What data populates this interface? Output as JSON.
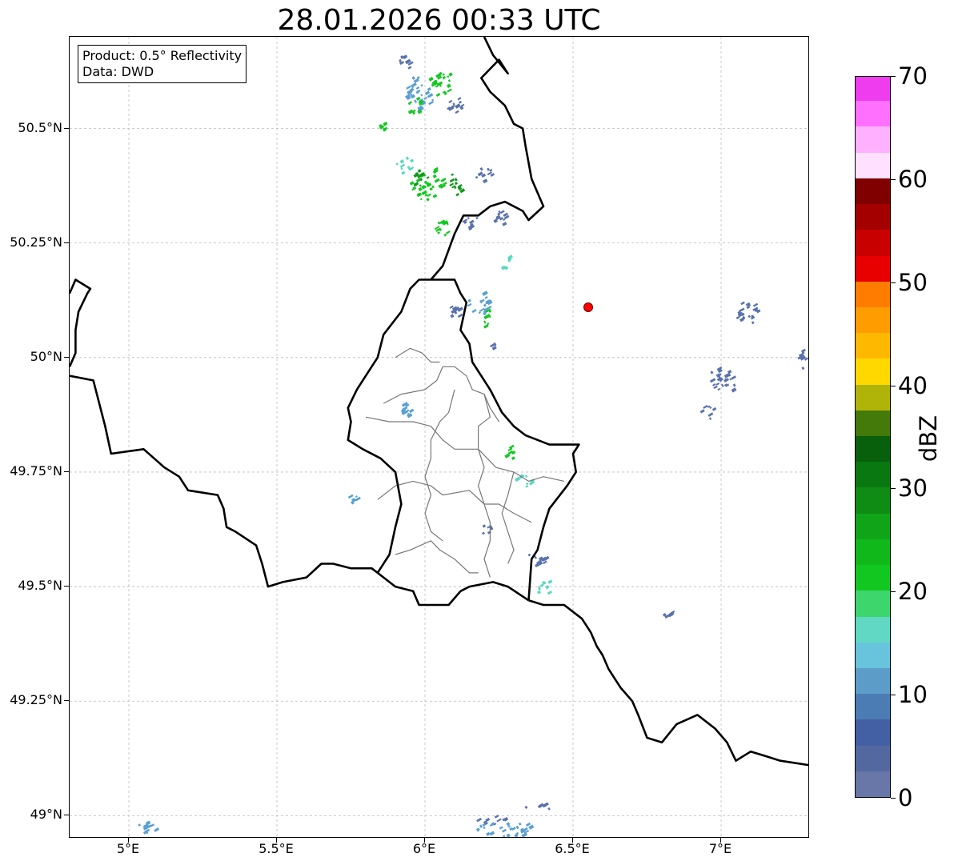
{
  "title": "28.01.2026 00:33 UTC",
  "infobox": {
    "product": "Product: 0.5° Reflectivity",
    "data": "Data: DWD"
  },
  "axes": {
    "lon_range": [
      4.8,
      7.3
    ],
    "lat_range": [
      48.95,
      50.7
    ],
    "x_ticks": [
      {
        "value": 5.0,
        "label": "5°E"
      },
      {
        "value": 5.5,
        "label": "5.5°E"
      },
      {
        "value": 6.0,
        "label": "6°E"
      },
      {
        "value": 6.5,
        "label": "6.5°E"
      },
      {
        "value": 7.0,
        "label": "7°E"
      }
    ],
    "y_ticks": [
      {
        "value": 49.0,
        "label": "49°N"
      },
      {
        "value": 49.25,
        "label": "49.25°N"
      },
      {
        "value": 49.5,
        "label": "49.5°N"
      },
      {
        "value": 49.75,
        "label": "49.75°N"
      },
      {
        "value": 50.0,
        "label": "50°N"
      },
      {
        "value": 50.25,
        "label": "50.25°N"
      },
      {
        "value": 50.5,
        "label": "50.5°N"
      }
    ]
  },
  "radar_site": {
    "lon": 6.55,
    "lat": 50.11,
    "color": "#ff0000"
  },
  "colorbar": {
    "unit": "dBZ",
    "range": [
      0,
      70
    ],
    "tick_labels": [
      {
        "value": 0,
        "label": "0"
      },
      {
        "value": 10,
        "label": "10"
      },
      {
        "value": 20,
        "label": "20"
      },
      {
        "value": 30,
        "label": "30"
      },
      {
        "value": 40,
        "label": "40"
      },
      {
        "value": 50,
        "label": "50"
      },
      {
        "value": 60,
        "label": "60"
      },
      {
        "value": 70,
        "label": "70"
      }
    ],
    "colors": [
      "#6877a8",
      "#5468a0",
      "#4460a4",
      "#4c7cb4",
      "#5c9cc8",
      "#68c4dc",
      "#60d8c4",
      "#3cd66c",
      "#12c820",
      "#10b81a",
      "#10a418",
      "#0e8c14",
      "#0a7810",
      "#08600c",
      "#447a0a",
      "#b0b408",
      "#ffd800",
      "#ffb800",
      "#ff9c00",
      "#ff7c00",
      "#e80000",
      "#c80000",
      "#a40000",
      "#800000",
      "#ffe0ff",
      "#ffb0ff",
      "#ff70ff",
      "#ee3cee"
    ]
  },
  "borders": {
    "country": [
      {
        "name": "france-belgium",
        "points": [
          [
            4.8,
            49.96
          ],
          [
            4.88,
            49.95
          ],
          [
            4.92,
            49.85
          ],
          [
            4.94,
            49.79
          ],
          [
            5.05,
            49.8
          ],
          [
            5.12,
            49.76
          ],
          [
            5.17,
            49.74
          ],
          [
            5.2,
            49.71
          ],
          [
            5.3,
            49.7
          ],
          [
            5.32,
            49.67
          ],
          [
            5.33,
            49.63
          ],
          [
            5.36,
            49.62
          ],
          [
            5.43,
            49.59
          ],
          [
            5.45,
            49.55
          ],
          [
            5.47,
            49.5
          ],
          [
            5.52,
            49.51
          ],
          [
            5.6,
            49.52
          ],
          [
            5.65,
            49.55
          ],
          [
            5.69,
            49.55
          ],
          [
            5.75,
            49.54
          ],
          [
            5.82,
            49.54
          ],
          [
            5.84,
            49.53
          ]
        ]
      },
      {
        "name": "belgium-west",
        "points": [
          [
            4.8,
            50.14
          ],
          [
            4.82,
            50.17
          ],
          [
            4.87,
            50.15
          ],
          [
            4.86,
            50.14
          ],
          [
            4.83,
            50.1
          ],
          [
            4.82,
            50.06
          ],
          [
            4.82,
            50.01
          ],
          [
            4.8,
            49.98
          ]
        ]
      },
      {
        "name": "luxembourg-belgium",
        "points": [
          [
            5.84,
            49.53
          ],
          [
            5.88,
            49.57
          ],
          [
            5.9,
            49.63
          ],
          [
            5.92,
            49.68
          ],
          [
            5.9,
            49.75
          ],
          [
            5.85,
            49.78
          ],
          [
            5.79,
            49.8
          ],
          [
            5.74,
            49.82
          ],
          [
            5.75,
            49.86
          ],
          [
            5.74,
            49.89
          ],
          [
            5.77,
            49.93
          ],
          [
            5.8,
            49.96
          ],
          [
            5.84,
            50.0
          ],
          [
            5.86,
            50.05
          ],
          [
            5.92,
            50.1
          ],
          [
            5.95,
            50.15
          ],
          [
            5.98,
            50.17
          ],
          [
            6.02,
            50.17
          ]
        ]
      },
      {
        "name": "belgium-germany",
        "points": [
          [
            6.02,
            50.17
          ],
          [
            6.1,
            50.17
          ],
          [
            6.12,
            50.14
          ],
          [
            6.14,
            50.12
          ],
          [
            6.13,
            50.09
          ],
          [
            6.12,
            50.06
          ],
          [
            6.15,
            50.03
          ],
          [
            6.16,
            49.99
          ],
          [
            6.19,
            49.96
          ],
          [
            6.22,
            49.93
          ],
          [
            6.26,
            49.88
          ],
          [
            6.3,
            49.85
          ],
          [
            6.34,
            49.83
          ],
          [
            6.42,
            49.81
          ],
          [
            6.47,
            49.81
          ],
          [
            6.52,
            49.81
          ],
          [
            6.5,
            49.79
          ],
          [
            6.51,
            49.75
          ],
          [
            6.48,
            49.72
          ],
          [
            6.42,
            49.67
          ],
          [
            6.4,
            49.63
          ],
          [
            6.38,
            49.58
          ],
          [
            6.36,
            49.56
          ],
          [
            6.35,
            49.47
          ]
        ]
      },
      {
        "name": "luxembourg-france",
        "points": [
          [
            5.84,
            49.53
          ],
          [
            5.9,
            49.5
          ],
          [
            5.96,
            49.49
          ],
          [
            5.98,
            49.46
          ],
          [
            6.02,
            49.46
          ],
          [
            6.08,
            49.46
          ],
          [
            6.12,
            49.49
          ],
          [
            6.15,
            49.5
          ],
          [
            6.23,
            49.51
          ],
          [
            6.28,
            49.5
          ],
          [
            6.35,
            49.47
          ]
        ]
      },
      {
        "name": "germany-france",
        "points": [
          [
            6.35,
            49.47
          ],
          [
            6.4,
            49.46
          ],
          [
            6.47,
            49.46
          ],
          [
            6.53,
            49.43
          ],
          [
            6.56,
            49.4
          ],
          [
            6.58,
            49.37
          ],
          [
            6.6,
            49.35
          ],
          [
            6.62,
            49.32
          ],
          [
            6.66,
            49.28
          ],
          [
            6.7,
            49.25
          ],
          [
            6.72,
            49.22
          ],
          [
            6.75,
            49.17
          ],
          [
            6.8,
            49.16
          ],
          [
            6.85,
            49.2
          ],
          [
            6.92,
            49.22
          ],
          [
            6.98,
            49.19
          ],
          [
            7.02,
            49.16
          ],
          [
            7.05,
            49.12
          ],
          [
            7.1,
            49.14
          ],
          [
            7.15,
            49.13
          ],
          [
            7.2,
            49.12
          ],
          [
            7.3,
            49.11
          ]
        ]
      },
      {
        "name": "belgium-germany-north",
        "points": [
          [
            6.02,
            50.17
          ],
          [
            6.06,
            50.2
          ],
          [
            6.1,
            50.27
          ],
          [
            6.13,
            50.31
          ],
          [
            6.18,
            50.31
          ],
          [
            6.22,
            50.33
          ],
          [
            6.27,
            50.34
          ],
          [
            6.33,
            50.32
          ],
          [
            6.35,
            50.3
          ],
          [
            6.4,
            50.33
          ],
          [
            6.36,
            50.39
          ],
          [
            6.34,
            50.46
          ],
          [
            6.33,
            50.5
          ],
          [
            6.3,
            50.51
          ],
          [
            6.27,
            50.55
          ],
          [
            6.22,
            50.58
          ],
          [
            6.19,
            50.61
          ],
          [
            6.25,
            50.65
          ],
          [
            6.28,
            50.62
          ],
          [
            6.23,
            50.66
          ],
          [
            6.2,
            50.7
          ]
        ]
      }
    ],
    "region": [
      {
        "name": "canton-a",
        "points": [
          [
            5.86,
            49.9
          ],
          [
            5.92,
            49.92
          ],
          [
            6.0,
            49.93
          ],
          [
            6.04,
            49.95
          ],
          [
            6.06,
            49.98
          ],
          [
            6.1,
            49.98
          ],
          [
            6.14,
            49.96
          ],
          [
            6.16,
            49.93
          ],
          [
            6.2,
            49.92
          ],
          [
            6.22,
            49.89
          ],
          [
            6.25,
            49.86
          ]
        ]
      },
      {
        "name": "canton-b",
        "points": [
          [
            5.9,
            50.0
          ],
          [
            5.95,
            50.02
          ],
          [
            5.99,
            50.01
          ],
          [
            6.02,
            49.99
          ],
          [
            6.05,
            49.99
          ]
        ]
      },
      {
        "name": "canton-c",
        "points": [
          [
            5.8,
            49.87
          ],
          [
            5.88,
            49.86
          ],
          [
            5.96,
            49.86
          ],
          [
            6.02,
            49.85
          ],
          [
            6.06,
            49.82
          ],
          [
            6.1,
            49.8
          ],
          [
            6.12,
            49.8
          ],
          [
            6.18,
            49.8
          ],
          [
            6.24,
            49.76
          ],
          [
            6.3,
            49.75
          ],
          [
            6.35,
            49.73
          ],
          [
            6.4,
            49.74
          ],
          [
            6.47,
            49.73
          ]
        ]
      },
      {
        "name": "canton-d",
        "points": [
          [
            5.84,
            49.69
          ],
          [
            5.9,
            49.72
          ],
          [
            5.96,
            49.73
          ],
          [
            6.02,
            49.72
          ],
          [
            6.06,
            49.7
          ],
          [
            6.15,
            49.71
          ],
          [
            6.2,
            49.68
          ],
          [
            6.25,
            49.68
          ],
          [
            6.3,
            49.66
          ],
          [
            6.36,
            49.64
          ]
        ]
      },
      {
        "name": "canton-e",
        "points": [
          [
            5.9,
            49.57
          ],
          [
            5.95,
            49.58
          ],
          [
            6.02,
            49.6
          ],
          [
            6.05,
            49.58
          ],
          [
            6.1,
            49.56
          ],
          [
            6.15,
            49.53
          ],
          [
            6.18,
            49.53
          ]
        ]
      },
      {
        "name": "canton-f",
        "points": [
          [
            6.1,
            49.93
          ],
          [
            6.08,
            49.88
          ],
          [
            6.05,
            49.86
          ],
          [
            6.02,
            49.82
          ],
          [
            6.02,
            49.78
          ],
          [
            6.0,
            49.74
          ],
          [
            6.02,
            49.7
          ],
          [
            6.0,
            49.66
          ],
          [
            6.02,
            49.62
          ],
          [
            6.06,
            49.6
          ]
        ]
      },
      {
        "name": "canton-g",
        "points": [
          [
            6.2,
            49.92
          ],
          [
            6.22,
            49.87
          ],
          [
            6.18,
            49.85
          ],
          [
            6.18,
            49.8
          ],
          [
            6.2,
            49.76
          ],
          [
            6.18,
            49.72
          ],
          [
            6.2,
            49.68
          ],
          [
            6.22,
            49.64
          ],
          [
            6.22,
            49.6
          ],
          [
            6.2,
            49.56
          ],
          [
            6.22,
            49.52
          ]
        ]
      },
      {
        "name": "canton-h",
        "points": [
          [
            6.3,
            49.75
          ],
          [
            6.28,
            49.7
          ],
          [
            6.26,
            49.66
          ],
          [
            6.28,
            49.62
          ],
          [
            6.3,
            49.58
          ],
          [
            6.28,
            49.55
          ]
        ]
      }
    ]
  },
  "echo_colors": {
    "blue": "#5a72ac",
    "lightblue": "#5aa0d2",
    "cyan": "#58d8c0",
    "green": "#12c820",
    "darkgreen": "#0e9a1a"
  },
  "echoes": [
    {
      "lon": 5.93,
      "lat": 50.65,
      "w": 0.05,
      "h": 0.04,
      "c": "blue"
    },
    {
      "lon": 5.98,
      "lat": 50.58,
      "w": 0.1,
      "h": 0.08,
      "c": "lightblue"
    },
    {
      "lon": 6.05,
      "lat": 50.6,
      "w": 0.08,
      "h": 0.06,
      "c": "green"
    },
    {
      "lon": 5.96,
      "lat": 50.55,
      "w": 0.05,
      "h": 0.04,
      "c": "green"
    },
    {
      "lon": 6.1,
      "lat": 50.55,
      "w": 0.06,
      "h": 0.04,
      "c": "blue"
    },
    {
      "lon": 5.85,
      "lat": 50.5,
      "w": 0.03,
      "h": 0.03,
      "c": "green"
    },
    {
      "lon": 5.93,
      "lat": 50.42,
      "w": 0.06,
      "h": 0.04,
      "c": "cyan"
    },
    {
      "lon": 6.0,
      "lat": 50.38,
      "w": 0.12,
      "h": 0.07,
      "c": "green"
    },
    {
      "lon": 5.98,
      "lat": 50.39,
      "w": 0.05,
      "h": 0.04,
      "c": "darkgreen"
    },
    {
      "lon": 6.1,
      "lat": 50.38,
      "w": 0.05,
      "h": 0.05,
      "c": "darkgreen"
    },
    {
      "lon": 6.2,
      "lat": 50.4,
      "w": 0.07,
      "h": 0.03,
      "c": "blue"
    },
    {
      "lon": 6.25,
      "lat": 50.3,
      "w": 0.06,
      "h": 0.04,
      "c": "blue"
    },
    {
      "lon": 6.15,
      "lat": 50.3,
      "w": 0.05,
      "h": 0.04,
      "c": "blue"
    },
    {
      "lon": 6.06,
      "lat": 50.28,
      "w": 0.06,
      "h": 0.04,
      "c": "green"
    },
    {
      "lon": 6.27,
      "lat": 50.2,
      "w": 0.03,
      "h": 0.05,
      "c": "cyan"
    },
    {
      "lon": 6.18,
      "lat": 50.12,
      "w": 0.08,
      "h": 0.05,
      "c": "lightblue"
    },
    {
      "lon": 6.2,
      "lat": 50.09,
      "w": 0.04,
      "h": 0.05,
      "c": "green"
    },
    {
      "lon": 6.1,
      "lat": 50.1,
      "w": 0.05,
      "h": 0.04,
      "c": "blue"
    },
    {
      "lon": 6.22,
      "lat": 50.03,
      "w": 0.04,
      "h": 0.02,
      "c": "blue"
    },
    {
      "lon": 5.93,
      "lat": 49.88,
      "w": 0.06,
      "h": 0.04,
      "c": "lightblue"
    },
    {
      "lon": 6.28,
      "lat": 49.79,
      "w": 0.03,
      "h": 0.04,
      "c": "green"
    },
    {
      "lon": 6.33,
      "lat": 49.73,
      "w": 0.06,
      "h": 0.03,
      "c": "cyan"
    },
    {
      "lon": 6.2,
      "lat": 49.63,
      "w": 0.04,
      "h": 0.03,
      "c": "blue"
    },
    {
      "lon": 6.37,
      "lat": 49.56,
      "w": 0.07,
      "h": 0.04,
      "c": "blue"
    },
    {
      "lon": 6.4,
      "lat": 49.5,
      "w": 0.07,
      "h": 0.03,
      "c": "cyan"
    },
    {
      "lon": 5.75,
      "lat": 49.69,
      "w": 0.05,
      "h": 0.02,
      "c": "lightblue"
    },
    {
      "lon": 7.08,
      "lat": 50.1,
      "w": 0.08,
      "h": 0.06,
      "c": "blue"
    },
    {
      "lon": 7.0,
      "lat": 49.95,
      "w": 0.1,
      "h": 0.06,
      "c": "blue"
    },
    {
      "lon": 6.95,
      "lat": 49.88,
      "w": 0.05,
      "h": 0.03,
      "c": "blue"
    },
    {
      "lon": 7.27,
      "lat": 50.0,
      "w": 0.03,
      "h": 0.05,
      "c": "blue"
    },
    {
      "lon": 6.82,
      "lat": 49.44,
      "w": 0.04,
      "h": 0.015,
      "c": "blue"
    },
    {
      "lon": 6.27,
      "lat": 48.97,
      "w": 0.22,
      "h": 0.03,
      "c": "lightblue"
    },
    {
      "lon": 6.22,
      "lat": 48.99,
      "w": 0.1,
      "h": 0.02,
      "c": "blue"
    },
    {
      "lon": 5.06,
      "lat": 48.98,
      "w": 0.06,
      "h": 0.04,
      "c": "lightblue"
    },
    {
      "lon": 6.38,
      "lat": 49.02,
      "w": 0.12,
      "h": 0.01,
      "c": "blue"
    }
  ]
}
